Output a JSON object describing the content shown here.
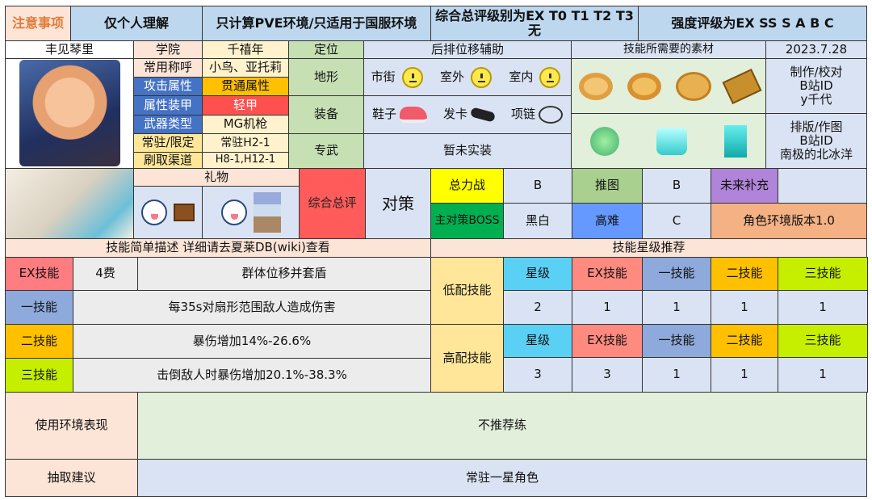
{
  "header": {
    "notice": "注意事项",
    "personal": "仅个人理解",
    "scope": "只计算PVE环境/只适用于国服环境",
    "overall_scale": "综合总评级别为EX T0 T1 T2 T3 无",
    "strength_scale": "强度评级为EX SS S A B C"
  },
  "character": {
    "name": "丰见琴里"
  },
  "profile": [
    {
      "label": "学院",
      "value": "千禧年"
    },
    {
      "label": "常用称呼",
      "value": "小鸟、亚托莉"
    },
    {
      "label": "攻击属性",
      "value": "贯通属性"
    },
    {
      "label": "属性装甲",
      "value": "轻甲"
    },
    {
      "label": "武器类型",
      "value": "MG机枪"
    },
    {
      "label": "常驻/限定",
      "value": "常驻H2-1"
    },
    {
      "label": "刷取渠道",
      "value": "H8-1,H12-1"
    }
  ],
  "position": {
    "label": "定位",
    "value": "后排位移辅助"
  },
  "terrain": {
    "label": "地形",
    "items": [
      {
        "name": "市街",
        "icon": "neutral-face-icon"
      },
      {
        "name": "室外",
        "icon": "neutral-face-icon"
      },
      {
        "name": "室内",
        "icon": "neutral-face-icon"
      }
    ]
  },
  "equipment": {
    "label": "装备",
    "items": [
      {
        "name": "鞋子",
        "icon": "shoes-icon"
      },
      {
        "name": "发卡",
        "icon": "hairband-icon"
      },
      {
        "name": "项链",
        "icon": "necklace-icon"
      }
    ]
  },
  "unique_weapon": {
    "label": "专武",
    "value": "暂未实装"
  },
  "materials": {
    "title": "技能所需要的素材"
  },
  "credits": {
    "date": "2023.7.28",
    "maker_label": "制作/校对",
    "maker_site": "B站ID",
    "maker_name": "y千代",
    "layout_label": "排版/作图",
    "layout_site": "B站ID",
    "layout_name": "南极的北冰洋"
  },
  "gifts": {
    "title": "礼物"
  },
  "overall": {
    "label": "综合总评",
    "counter_label": "对策"
  },
  "ratings": {
    "total_war": "总力战",
    "total_war_value": "B",
    "story": "推图",
    "story_value": "B",
    "future": "未来补充",
    "future_value": "",
    "boss": "主对策BOSS",
    "boss_value": "黑白",
    "hard": "高难",
    "hard_value": "C",
    "version": "角色环境版本1.0"
  },
  "skills": {
    "title": "技能简单描述 详细请去夏莱DB(wiki)查看",
    "ex_label": "EX技能",
    "ex_cost": "4费",
    "ex_desc": "群体位移并套盾",
    "s1_label": "一技能",
    "s1_desc": "每35s对扇形范围敌人造成伤害",
    "s2_label": "二技能",
    "s2_desc": "暴伤增加14%-26.6%",
    "s3_label": "三技能",
    "s3_desc": "击倒敌人时暴伤增加20.1%-38.3%"
  },
  "star": {
    "title": "技能星级推荐",
    "cols": [
      "星级",
      "EX技能",
      "一技能",
      "二技能",
      "三技能"
    ],
    "low_label": "低配技能",
    "low": [
      "2",
      "1",
      "1",
      "1",
      "1"
    ],
    "high_label": "高配技能",
    "high": [
      "3",
      "3",
      "1",
      "1",
      "1"
    ]
  },
  "usage": {
    "label": "使用环境表现",
    "value": "不推荐练"
  },
  "pull": {
    "label": "抽取建议",
    "value": "常驻一星角色"
  },
  "colors": {
    "blue_label": "#4472c4",
    "pierce": "#ffc000",
    "light_armor": "#ff5050",
    "overall": "#ff5b5b",
    "star": "#5bd0f5",
    "ex": "#ff8a80",
    "s1": "#8ea9db",
    "s2": "#ffc000",
    "s3": "#c6ef00"
  }
}
